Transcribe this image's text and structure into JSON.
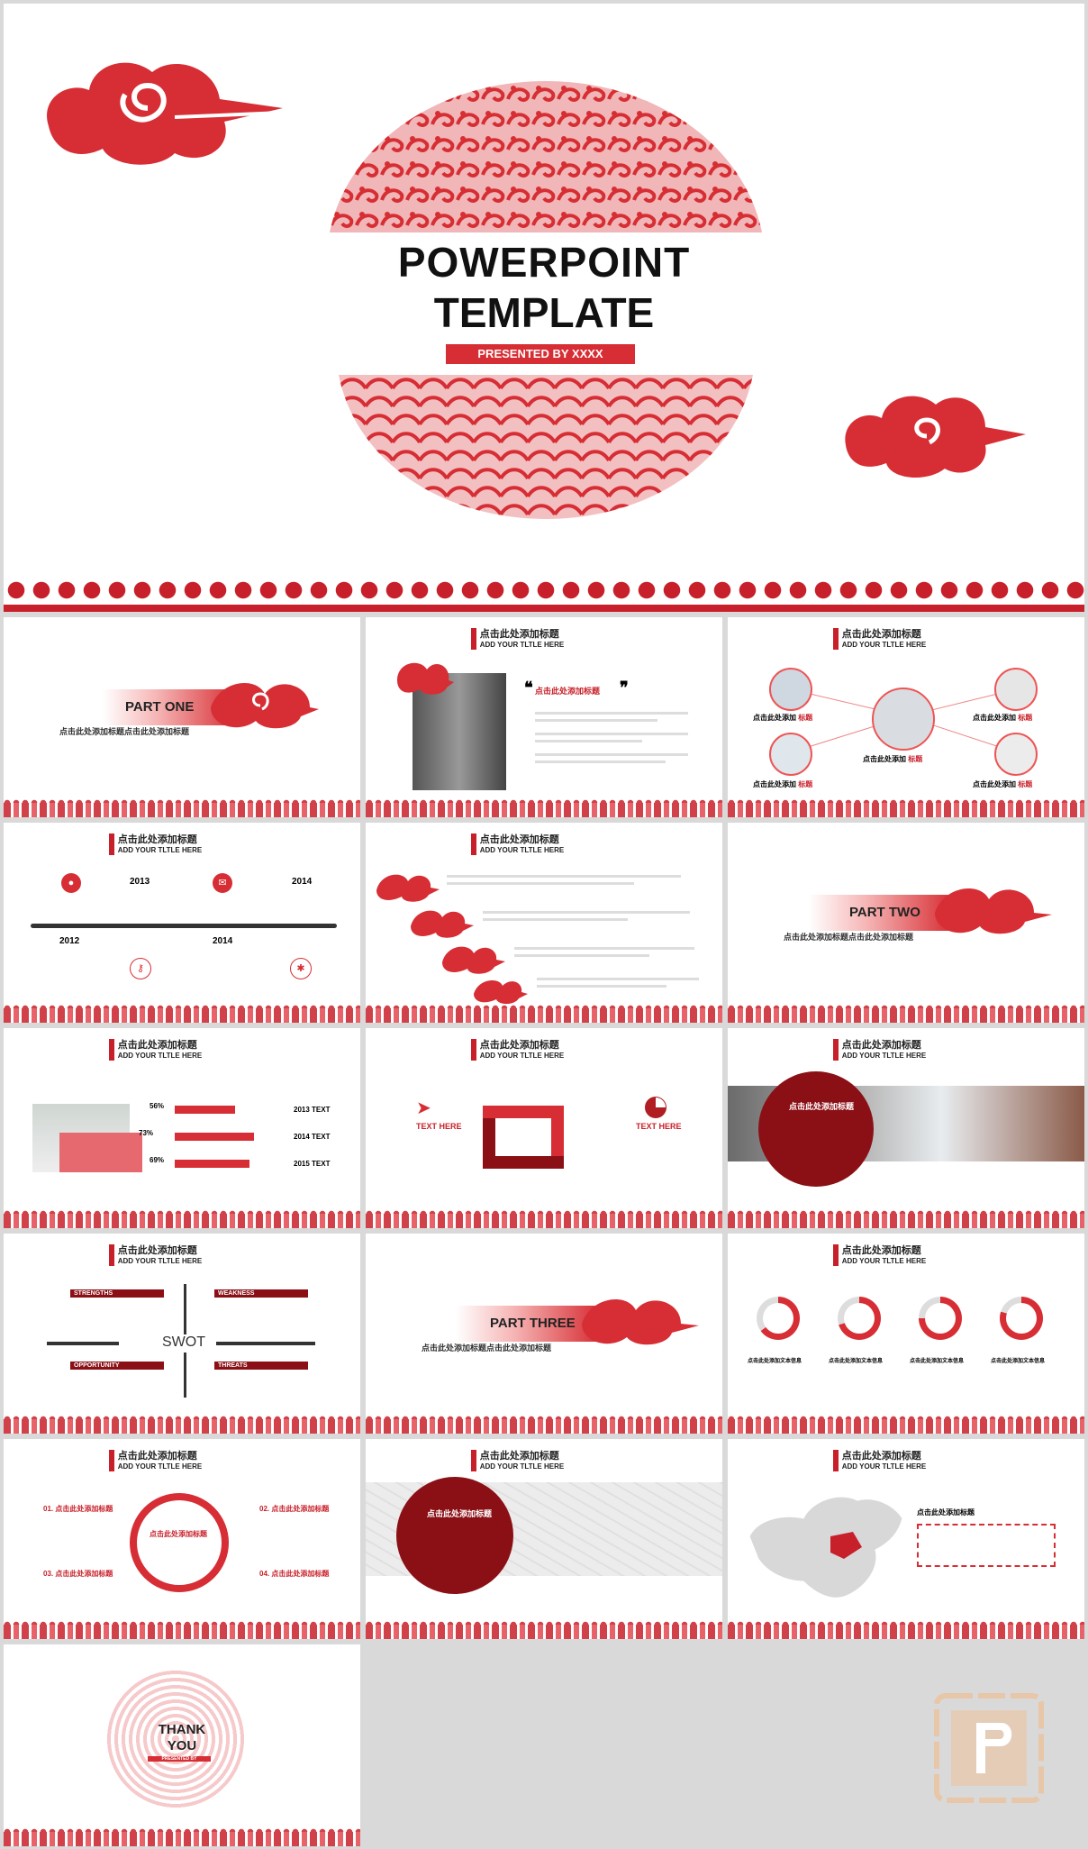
{
  "cover": {
    "title_line1": "POWERPOINT",
    "title_line2": "TEMPLATE",
    "subtitle": "PRESENTED BY XXXX"
  },
  "common": {
    "header_cn": "点击此处添加标题",
    "header_en": "ADD YOUR TLTLE HERE",
    "sub_cn": "点击此处添加标题点击此处添加标题"
  },
  "s_part_one": {
    "label": "PART ONE"
  },
  "s_quote": {
    "title": "点击此处添加标题"
  },
  "s_people": {
    "label_a": "点击此处添加",
    "label_b": "标题",
    "center_a": "点击此处添加",
    "center_b": "标题"
  },
  "s_timeline": {
    "years": [
      "2013",
      "2014",
      "2012",
      "2014"
    ]
  },
  "s_part_two": {
    "label": "PART TWO"
  },
  "s_bars": {
    "rows": [
      {
        "pct": "56%",
        "label": "2013 TEXT",
        "value": 56
      },
      {
        "pct": "73%",
        "label": "2014 TEXT",
        "value": 73
      },
      {
        "pct": "69%",
        "label": "2015 TEXT",
        "value": 69
      }
    ]
  },
  "s_text_here": {
    "left": "TEXT HERE",
    "right": "TEXT HERE"
  },
  "s_photo_circle": {
    "title": "点击此处添加标题"
  },
  "s_swot": {
    "center": "SWOT",
    "items": [
      "STRENGTHS",
      "WEAKNESS",
      "OPPORTUNITY",
      "THREATS"
    ]
  },
  "s_part_three": {
    "label": "PART THREE"
  },
  "s_donuts": {
    "label": "点击此处添加文本信息",
    "values": [
      0.65,
      0.7,
      0.75,
      0.8
    ]
  },
  "s_four": {
    "items": [
      "01. 点击此处添加标题",
      "02. 点击此处添加标题",
      "03. 点击此处添加标题",
      "04. 点击此处添加标题"
    ],
    "center": "点击此处添加标题"
  },
  "s_map_circle": {
    "title": "点击此处添加标题"
  },
  "s_china": {
    "title": "点击此处添加标题"
  },
  "thanks": {
    "line1": "THANK",
    "line2": "YOU",
    "sub": "PRESENTED BY"
  },
  "colors": {
    "accent": "#c8202a",
    "dark": "#8b1016"
  }
}
